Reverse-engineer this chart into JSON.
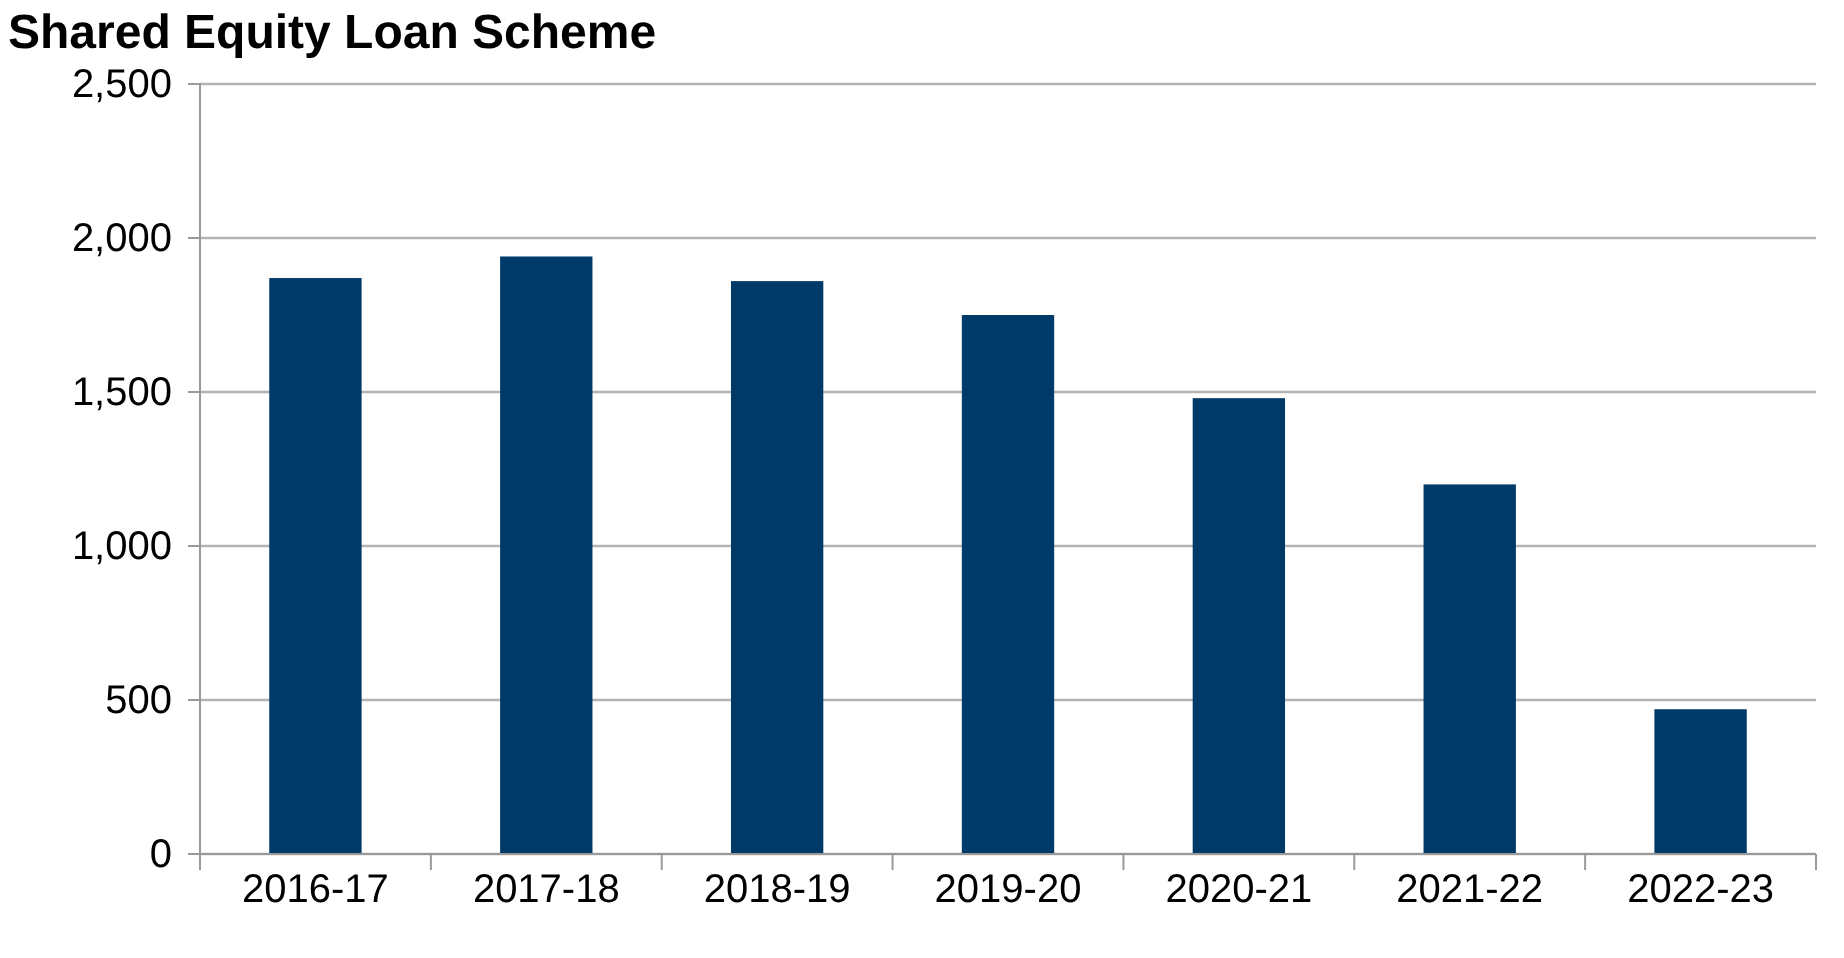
{
  "chart_data": {
    "type": "bar",
    "title": "Shared Equity Loan Scheme",
    "categories": [
      "2016-17",
      "2017-18",
      "2018-19",
      "2019-20",
      "2020-21",
      "2021-22",
      "2022-23"
    ],
    "values": [
      1870,
      1940,
      1860,
      1750,
      1480,
      1200,
      470
    ],
    "color": "#003a68",
    "ylim": [
      0,
      2500
    ],
    "yticks": [
      {
        "value": 0,
        "label": "0"
      },
      {
        "value": 500,
        "label": "500"
      },
      {
        "value": 1000,
        "label": "1,000"
      },
      {
        "value": 1500,
        "label": "1,500"
      },
      {
        "value": 2000,
        "label": "2,000"
      },
      {
        "value": 2500,
        "label": "2,500"
      }
    ],
    "grid": "y"
  }
}
